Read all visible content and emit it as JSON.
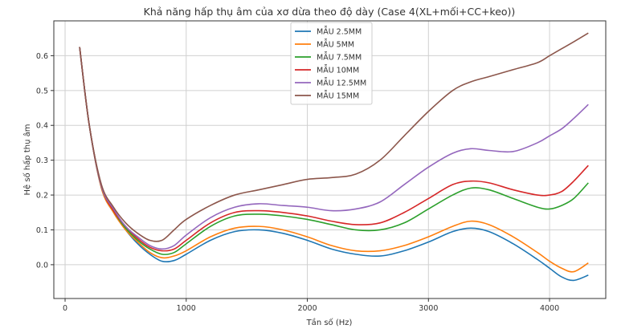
{
  "chart_data": {
    "type": "line",
    "title": "Khả năng hấp thụ âm của xơ dừa theo độ dày (Case 4(XL+mối+CC+keo))",
    "xlabel": "Tần số (Hz)",
    "ylabel": "Hệ số hấp thụ âm",
    "xlim": [
      -93,
      4464
    ],
    "ylim": [
      -0.097,
      0.7
    ],
    "xticks": [
      0,
      1000,
      2000,
      3000,
      4000
    ],
    "yticks": [
      0.0,
      0.1,
      0.2,
      0.3,
      0.4,
      0.5,
      0.6
    ],
    "ytick_labels": [
      "0.0",
      "0.1",
      "0.2",
      "0.3",
      "0.4",
      "0.5",
      "0.6"
    ],
    "grid": true,
    "legend_position": "top-center",
    "x": [
      120,
      200,
      300,
      400,
      500,
      600,
      700,
      800,
      900,
      1000,
      1200,
      1400,
      1600,
      1800,
      2000,
      2200,
      2400,
      2600,
      2800,
      3000,
      3200,
      3350,
      3500,
      3700,
      3900,
      4000,
      4100,
      4200,
      4320
    ],
    "series": [
      {
        "name": "MẪU 2.5MM",
        "color": "#1f77b4",
        "values": [
          0.625,
          0.4,
          0.22,
          0.15,
          0.1,
          0.06,
          0.03,
          0.01,
          0.012,
          0.03,
          0.07,
          0.095,
          0.1,
          0.09,
          0.07,
          0.045,
          0.03,
          0.025,
          0.04,
          0.065,
          0.095,
          0.105,
          0.095,
          0.06,
          0.015,
          -0.01,
          -0.035,
          -0.045,
          -0.03
        ]
      },
      {
        "name": "MẪU 5MM",
        "color": "#ff7f0e",
        "values": [
          0.625,
          0.4,
          0.22,
          0.15,
          0.1,
          0.065,
          0.035,
          0.02,
          0.025,
          0.04,
          0.08,
          0.105,
          0.11,
          0.1,
          0.08,
          0.055,
          0.04,
          0.04,
          0.055,
          0.08,
          0.11,
          0.125,
          0.115,
          0.08,
          0.035,
          0.01,
          -0.01,
          -0.02,
          0.005
        ]
      },
      {
        "name": "MẪU 7.5MM",
        "color": "#2ca02c",
        "values": [
          0.625,
          0.4,
          0.225,
          0.155,
          0.105,
          0.07,
          0.045,
          0.03,
          0.035,
          0.06,
          0.11,
          0.14,
          0.145,
          0.14,
          0.13,
          0.115,
          0.1,
          0.1,
          0.12,
          0.16,
          0.2,
          0.22,
          0.215,
          0.19,
          0.165,
          0.16,
          0.17,
          0.19,
          0.235
        ]
      },
      {
        "name": "MẪU 10MM",
        "color": "#d62728",
        "values": [
          0.625,
          0.4,
          0.225,
          0.155,
          0.11,
          0.075,
          0.05,
          0.04,
          0.045,
          0.07,
          0.12,
          0.15,
          0.155,
          0.15,
          0.14,
          0.125,
          0.115,
          0.12,
          0.15,
          0.19,
          0.23,
          0.24,
          0.235,
          0.215,
          0.2,
          0.2,
          0.21,
          0.24,
          0.285
        ]
      },
      {
        "name": "MẪU 12.5MM",
        "color": "#9467bd",
        "values": [
          0.625,
          0.4,
          0.225,
          0.16,
          0.11,
          0.08,
          0.055,
          0.045,
          0.055,
          0.085,
          0.135,
          0.165,
          0.175,
          0.17,
          0.165,
          0.155,
          0.16,
          0.18,
          0.23,
          0.28,
          0.32,
          0.333,
          0.328,
          0.325,
          0.35,
          0.37,
          0.39,
          0.42,
          0.46
        ]
      },
      {
        "name": "MẪU 15MM",
        "color": "#8c564b",
        "values": [
          0.625,
          0.4,
          0.23,
          0.165,
          0.12,
          0.09,
          0.07,
          0.07,
          0.1,
          0.13,
          0.17,
          0.2,
          0.215,
          0.23,
          0.245,
          0.25,
          0.26,
          0.3,
          0.37,
          0.44,
          0.5,
          0.525,
          0.54,
          0.56,
          0.58,
          0.6,
          0.62,
          0.64,
          0.665
        ]
      }
    ]
  }
}
